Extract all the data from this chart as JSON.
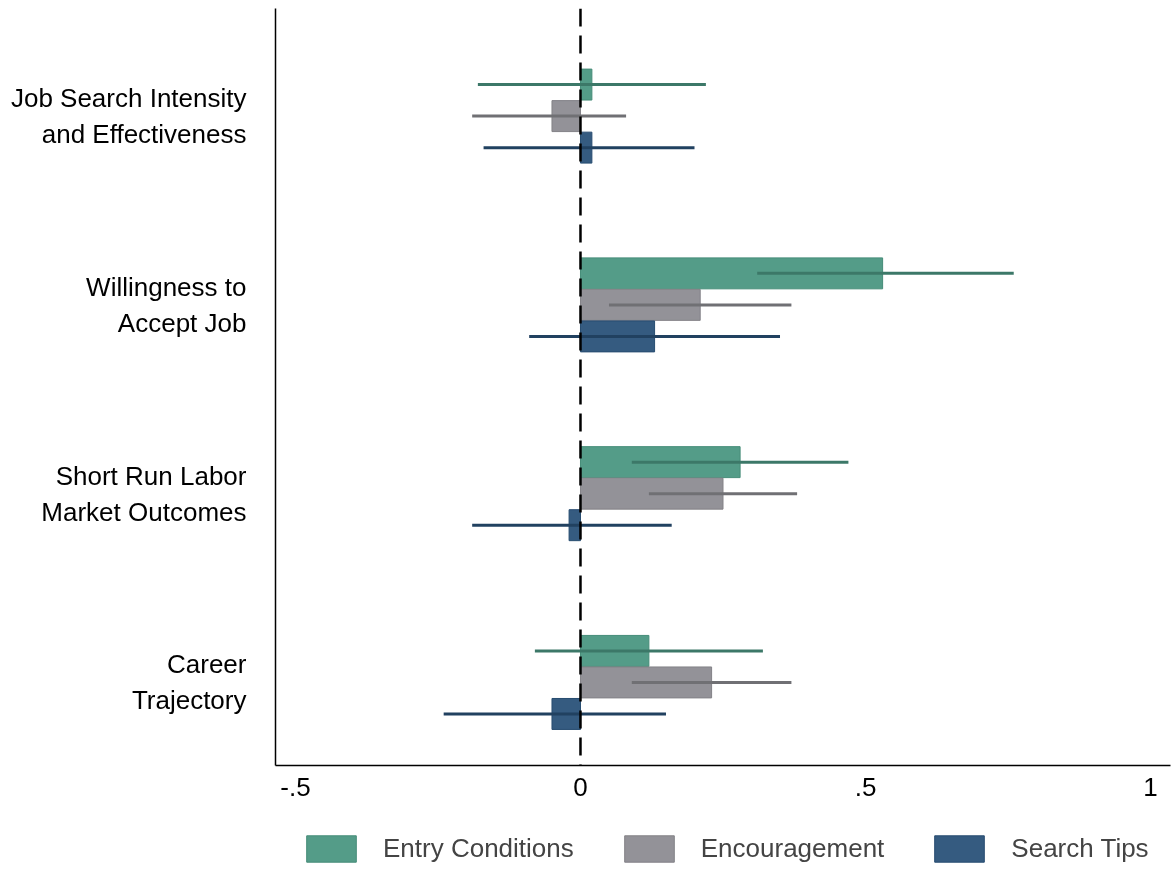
{
  "chart_data": {
    "type": "bar",
    "orientation": "horizontal",
    "categories": [
      "Job Search Intensity\nand Effectiveness",
      "Willingness to\nAccept Job",
      "Short Run Labor\nMarket Outcomes",
      "Career\nTrajectory"
    ],
    "series": [
      {
        "name": "Entry Conditions",
        "color": "#4b9782",
        "values": [
          0.02,
          0.53,
          0.28,
          0.12
        ],
        "errors": [
          [
            -0.18,
            0.22
          ],
          [
            0.31,
            0.76
          ],
          [
            0.09,
            0.47
          ],
          [
            -0.08,
            0.32
          ]
        ]
      },
      {
        "name": "Encouragement",
        "color": "#8d8c92",
        "values": [
          -0.05,
          0.21,
          0.25,
          0.23
        ],
        "errors": [
          [
            -0.19,
            0.08
          ],
          [
            0.05,
            0.37
          ],
          [
            0.12,
            0.38
          ],
          [
            0.09,
            0.37
          ]
        ]
      },
      {
        "name": "Search Tips",
        "color": "#2a5279",
        "values": [
          0.02,
          0.13,
          -0.02,
          -0.05
        ],
        "errors": [
          [
            -0.17,
            0.2
          ],
          [
            -0.09,
            0.35
          ],
          [
            -0.19,
            0.16
          ],
          [
            -0.24,
            0.15
          ]
        ]
      }
    ],
    "xlim": [
      -0.535,
      1.035
    ],
    "xticks": [
      {
        "value": -0.5,
        "label": "-.5"
      },
      0,
      {
        "value": 0.5,
        "label": ".5"
      },
      1
    ],
    "ref_lines": [
      {
        "axis": "x",
        "value": 0,
        "color": "#000000",
        "line_style": "dashed"
      }
    ],
    "legend": "bottom",
    "grid": false
  }
}
